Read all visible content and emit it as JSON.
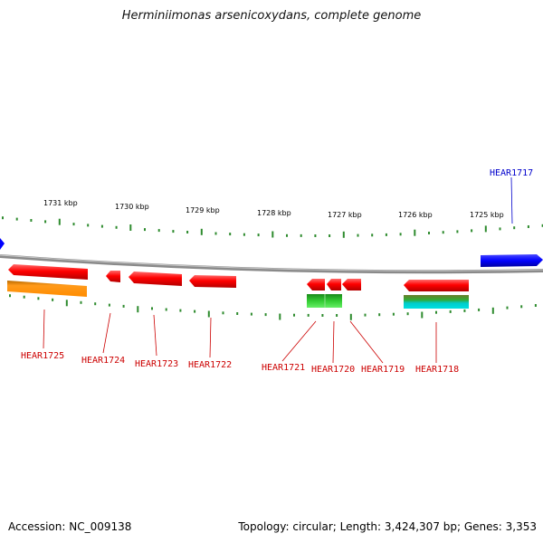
{
  "title": "Herminiimonas arsenicoxydans, complete genome",
  "footer": {
    "accession": "Accession: NC_009138",
    "summary": "Topology: circular; Length: 3,424,307 bp; Genes: 3,353"
  },
  "colors": {
    "backbone": "#8a8a8a",
    "ticks": "#2e8b2e",
    "forward_gene": "#ff0000",
    "highlight_gene": "#0000ff",
    "label_red": "#cc0000",
    "label_blue": "#0000cc"
  },
  "scale_labels": [
    "1731 kbp",
    "1730 kbp",
    "1729 kbp",
    "1728 kbp",
    "1727 kbp",
    "1726 kbp",
    "1725 kbp"
  ],
  "genes": [
    {
      "id": "HEAR1725",
      "color": "red"
    },
    {
      "id": "HEAR1724",
      "color": "red"
    },
    {
      "id": "HEAR1723",
      "color": "red"
    },
    {
      "id": "HEAR1722",
      "color": "red"
    },
    {
      "id": "HEAR1721",
      "color": "red"
    },
    {
      "id": "HEAR1720",
      "color": "red"
    },
    {
      "id": "HEAR1719",
      "color": "red"
    },
    {
      "id": "HEAR1718",
      "color": "red"
    },
    {
      "id": "HEAR1717",
      "color": "blue"
    }
  ]
}
